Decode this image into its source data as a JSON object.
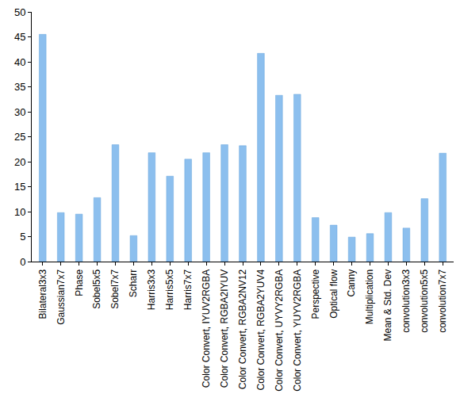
{
  "chart_data": {
    "type": "bar",
    "categories": [
      "Bilateral3x3",
      "Gaussian7x7",
      "Phase",
      "Sobel5x5",
      "Sobel7x7",
      "Scharr",
      "Harris3x3",
      "Harris5x5",
      "Harris7x7",
      "Color Convert, IYUV2RGBA",
      "Color Convert, RGBA2IYUV",
      "Color Convert, RGBA2NV12",
      "Color Convert, RGBA2YUV4",
      "Color Convert, UYVY2RGBA",
      "Color Convert, YUYV2RGBA",
      "Perspective",
      "Optical flow",
      "Canny",
      "Multiplication",
      "Mean & Std. Dev",
      "convolution3x3",
      "convolution5x5",
      "convolution7x7"
    ],
    "values": [
      45.5,
      9.8,
      9.5,
      12.8,
      23.4,
      5.2,
      21.8,
      17.1,
      20.5,
      21.8,
      23.4,
      23.2,
      41.7,
      33.3,
      33.5,
      8.8,
      7.3,
      4.9,
      5.6,
      9.8,
      6.7,
      12.6,
      21.7
    ],
    "color": "#8cbfee",
    "ylim": [
      0,
      50
    ],
    "yticks": [
      0,
      5,
      10,
      15,
      20,
      25,
      30,
      35,
      40,
      45,
      50
    ],
    "grid": false
  }
}
